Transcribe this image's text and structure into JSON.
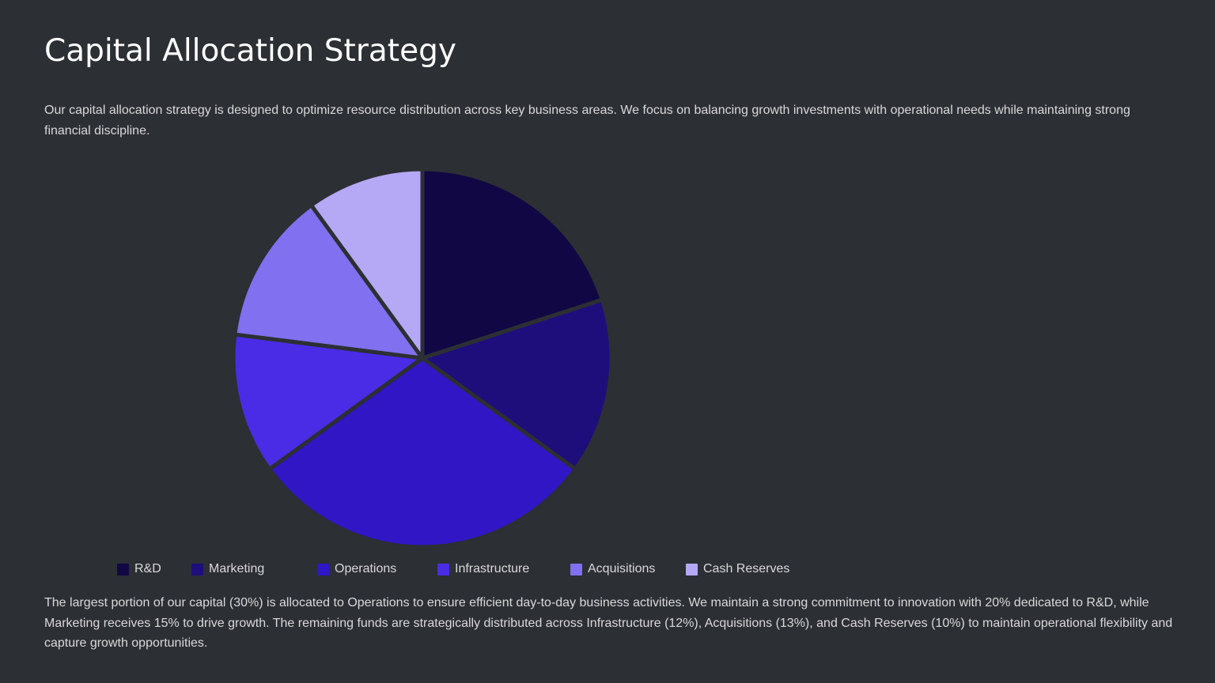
{
  "slide": {
    "title": "Capital Allocation Strategy",
    "intro": "Our capital allocation strategy is designed to optimize resource distribution across key business areas. We focus on balancing growth investments with operational needs while maintaining strong financial discipline.",
    "summary": "The largest portion of our capital (30%) is allocated to Operations to ensure efficient day-to-day business activities. We maintain a strong commitment to innovation with 20% dedicated to R&D, while Marketing receives 15% to drive growth. The remaining funds are strategically distributed across Infrastructure (12%), Acquisitions (13%), and Cash Reserves (10%) to maintain operational flexibility and capture growth opportunities."
  },
  "chart_data": {
    "type": "pie",
    "categories": [
      "R&D",
      "Marketing",
      "Operations",
      "Infrastructure",
      "Acquisitions",
      "Cash Reserves"
    ],
    "values": [
      20,
      15,
      30,
      12,
      13,
      10
    ],
    "unit": "%",
    "colors": [
      "#110745",
      "#1e0e7c",
      "#3016c5",
      "#4a2ce6",
      "#8170ef",
      "#b5a9f5"
    ],
    "start_angle_deg": 0,
    "direction": "clockwise",
    "legend": {
      "position": "bottom-left",
      "labels": [
        "R&D",
        "Marketing",
        "Operations",
        "Infrastructure",
        "Acquisitions",
        "Cash Reserves"
      ]
    },
    "slice_separator_color": "#2c2f33"
  }
}
